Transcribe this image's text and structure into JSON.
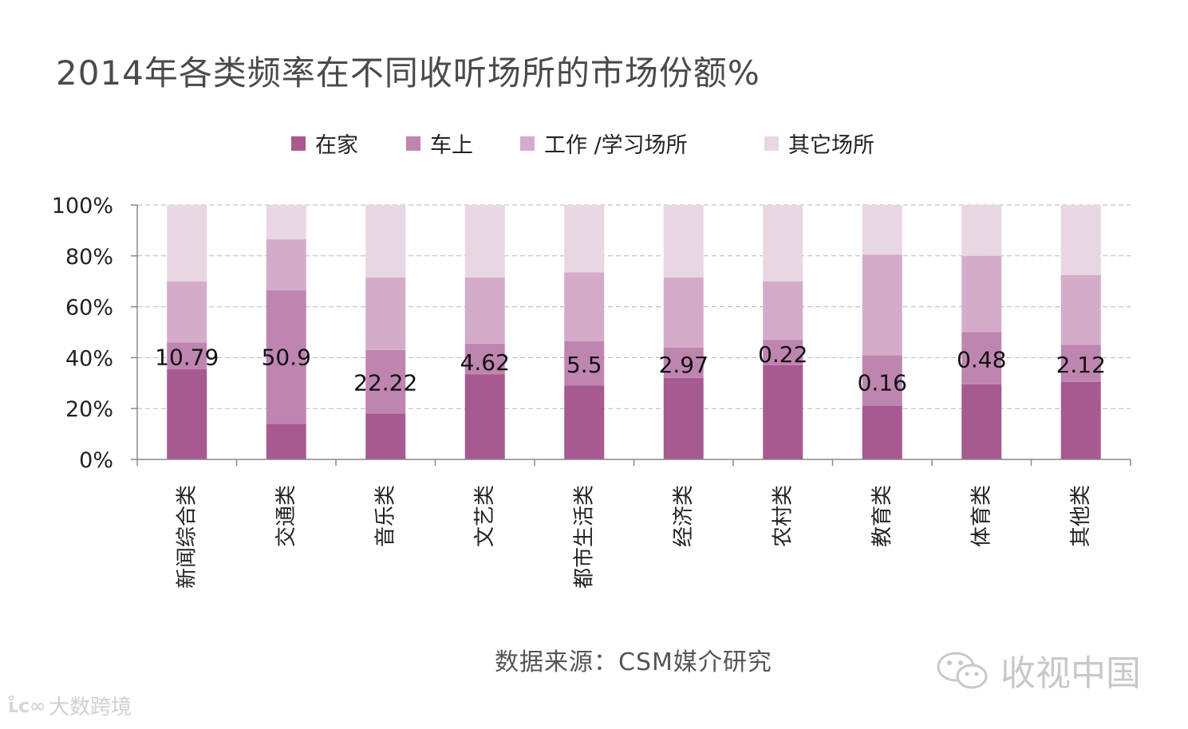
{
  "title": "2014年各类频率在不同收听场所的市场份额%",
  "source_note": "数据来源：CSM媒介研究",
  "watermarks": {
    "right": "收视中国",
    "left_logo": "ʟ̊ᴄ∞",
    "left": "大数跨境"
  },
  "chart_data": {
    "type": "bar",
    "stacked": true,
    "title": "2014年各类频率在不同收听场所的市场份额%",
    "categories": [
      "新闻综合类",
      "交通类",
      "音乐类",
      "文艺类",
      "都市生活类",
      "经济类",
      "农村类",
      "教育类",
      "体育类",
      "其他类"
    ],
    "series": [
      {
        "name": "在家",
        "color": "#a65a90",
        "values": [
          35.5,
          14,
          18,
          33.5,
          29,
          32,
          37,
          21,
          29.5,
          30.5
        ]
      },
      {
        "name": "车上",
        "color": "#bf85b1",
        "values": [
          10.5,
          52.5,
          25,
          12,
          17.5,
          12,
          10,
          20,
          20.5,
          14.5
        ]
      },
      {
        "name": "工作 /学习场所",
        "color": "#d4acca",
        "values": [
          24,
          20,
          28.5,
          26,
          27,
          27.5,
          23,
          39.5,
          30,
          27.5
        ]
      },
      {
        "name": "其它场所",
        "color": "#e9d6e3",
        "values": [
          30,
          13.5,
          28.5,
          28.5,
          26.5,
          28.5,
          30,
          19.5,
          20,
          27.5
        ]
      }
    ],
    "data_labels": [
      {
        "text": "10.79",
        "y": 40
      },
      {
        "text": "50.9",
        "y": 40
      },
      {
        "text": "22.22",
        "y": 30
      },
      {
        "text": "4.62",
        "y": 38
      },
      {
        "text": "5.5",
        "y": 37
      },
      {
        "text": "2.97",
        "y": 37
      },
      {
        "text": "0.22",
        "y": 41
      },
      {
        "text": "0.16",
        "y": 30
      },
      {
        "text": "0.48",
        "y": 39
      },
      {
        "text": "2.12",
        "y": 37
      }
    ],
    "y_axis": {
      "min": 0,
      "max": 100,
      "ticks": [
        "0%",
        "20%",
        "40%",
        "60%",
        "80%",
        "100%"
      ],
      "gridlines": "dashed"
    },
    "legend_position": "top"
  }
}
